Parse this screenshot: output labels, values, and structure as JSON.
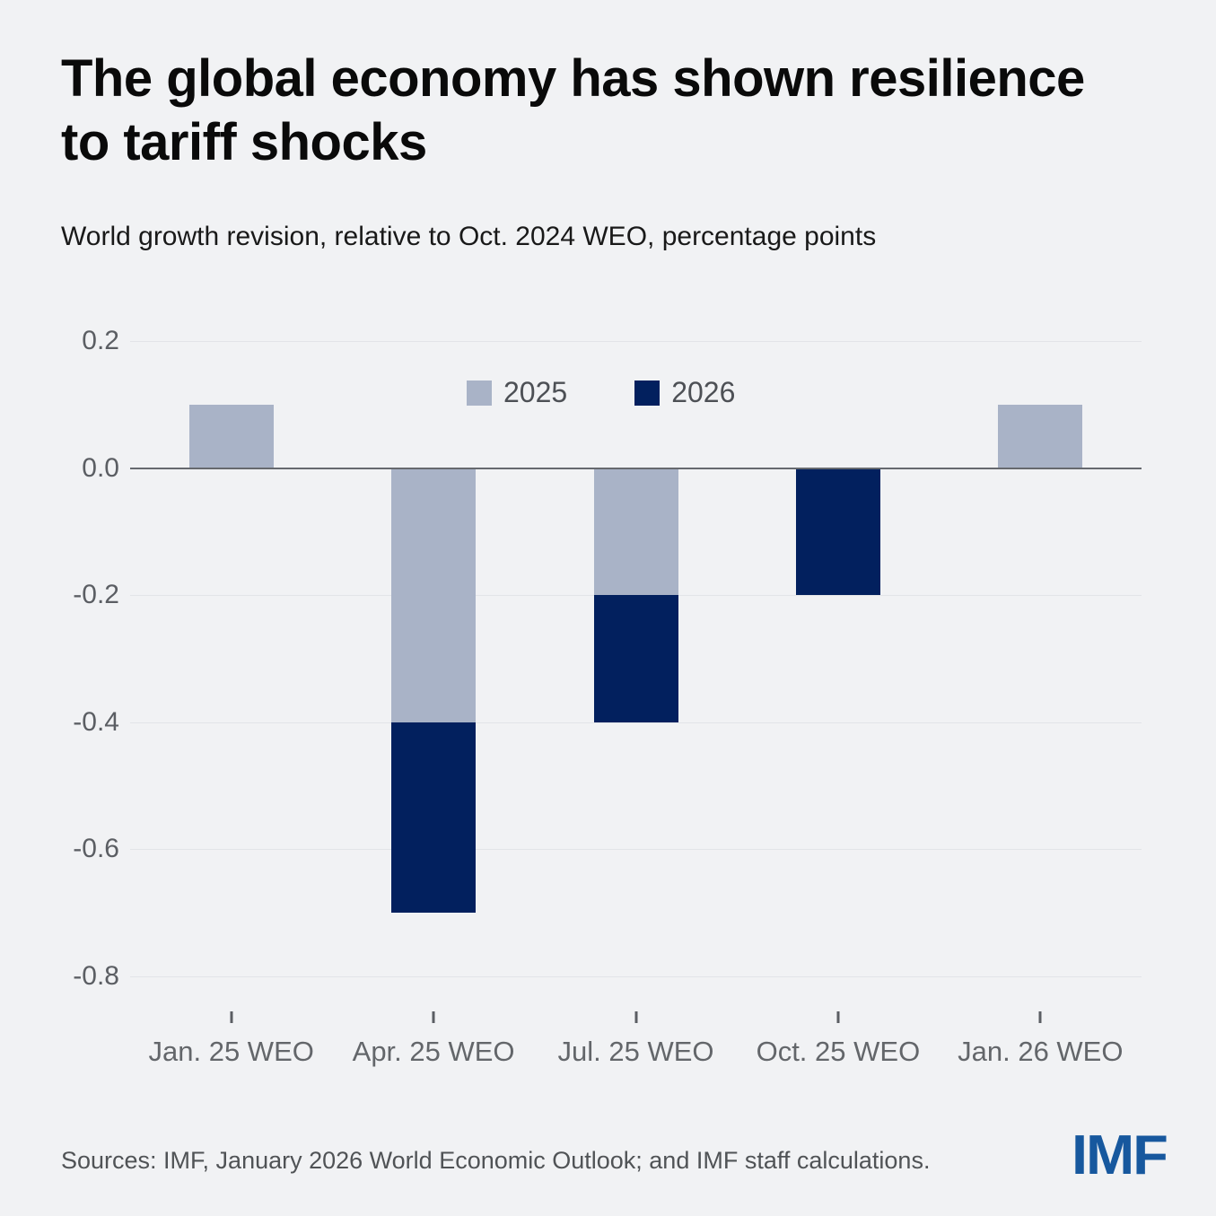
{
  "header": {
    "title": "The global economy has shown resilience to tariff shocks",
    "subtitle": "World growth revision, relative to Oct. 2024 WEO, percentage points"
  },
  "chart_data": {
    "type": "bar",
    "stacked": true,
    "title": "The global economy has shown resilience to tariff shocks",
    "subtitle": "World growth revision, relative to Oct. 2024 WEO, percentage points",
    "categories": [
      "Jan. 25 WEO",
      "Apr. 25 WEO",
      "Jul. 25 WEO",
      "Oct. 25 WEO",
      "Jan. 26 WEO"
    ],
    "series": [
      {
        "name": "2025",
        "color": "#a9b3c7",
        "values": [
          0.1,
          -0.4,
          -0.2,
          0.0,
          0.1
        ]
      },
      {
        "name": "2026",
        "color": "#02205e",
        "values": [
          0.0,
          -0.3,
          -0.2,
          -0.2,
          0.0
        ]
      }
    ],
    "xlabel": "",
    "ylabel": "percentage points",
    "ylim": [
      -0.8,
      0.2
    ],
    "ytick_labels": [
      "0.2",
      "0.0",
      "-0.2",
      "-0.4",
      "-0.6",
      "-0.8"
    ],
    "grid": true,
    "legend_position": "top-center"
  },
  "footer": {
    "sources": "Sources: IMF, January 2026 World Economic Outlook; and IMF staff calculations.",
    "logo": "IMF"
  },
  "colors": {
    "background": "#f1f2f4",
    "series_2025": "#a9b3c7",
    "series_2026": "#02205e",
    "logo_blue": "#17589e",
    "axis_line": "#66696e",
    "gridline": "#e2e4e8",
    "tick_text": "#5b5e63"
  }
}
